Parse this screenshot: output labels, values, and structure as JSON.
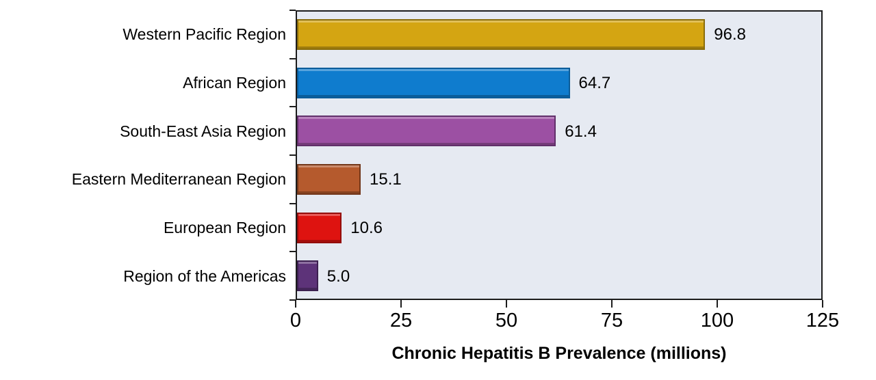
{
  "chart_data": {
    "type": "bar",
    "orientation": "horizontal",
    "title": "",
    "xlabel": "Chronic Hepatitis B Prevalence (millions)",
    "ylabel": "",
    "categories": [
      "Western Pacific Region",
      "African Region",
      "South-East Asia Region",
      "Eastern Mediterranean Region",
      "European Region",
      "Region of the Americas"
    ],
    "values": [
      96.8,
      64.7,
      61.4,
      15.1,
      10.6,
      5.0
    ],
    "value_labels": [
      "96.8",
      "64.7",
      "61.4",
      "15.1",
      "10.6",
      "5.0"
    ],
    "bar_colors": [
      {
        "name": "gold",
        "fill": "#D4A512",
        "edge": "#8A6D0B"
      },
      {
        "name": "blue",
        "fill": "#0F7CCE",
        "edge": "#0B5C99"
      },
      {
        "name": "magenta",
        "fill": "#9C50A3",
        "edge": "#61306A"
      },
      {
        "name": "orange",
        "fill": "#B55A2D",
        "edge": "#73381B"
      },
      {
        "name": "red",
        "fill": "#DE1310",
        "edge": "#930D0B"
      },
      {
        "name": "dark-purple",
        "fill": "#5D3379",
        "edge": "#3C2050"
      }
    ],
    "xlim": [
      0,
      125
    ],
    "x_ticks": [
      0,
      25,
      50,
      75,
      100,
      125
    ],
    "x_tick_labels": [
      "0",
      "25",
      "50",
      "75",
      "100",
      "125"
    ],
    "grid": false,
    "legend": false,
    "plot_background": "#E6EAF2",
    "axis_color": "#1C1C1C"
  }
}
